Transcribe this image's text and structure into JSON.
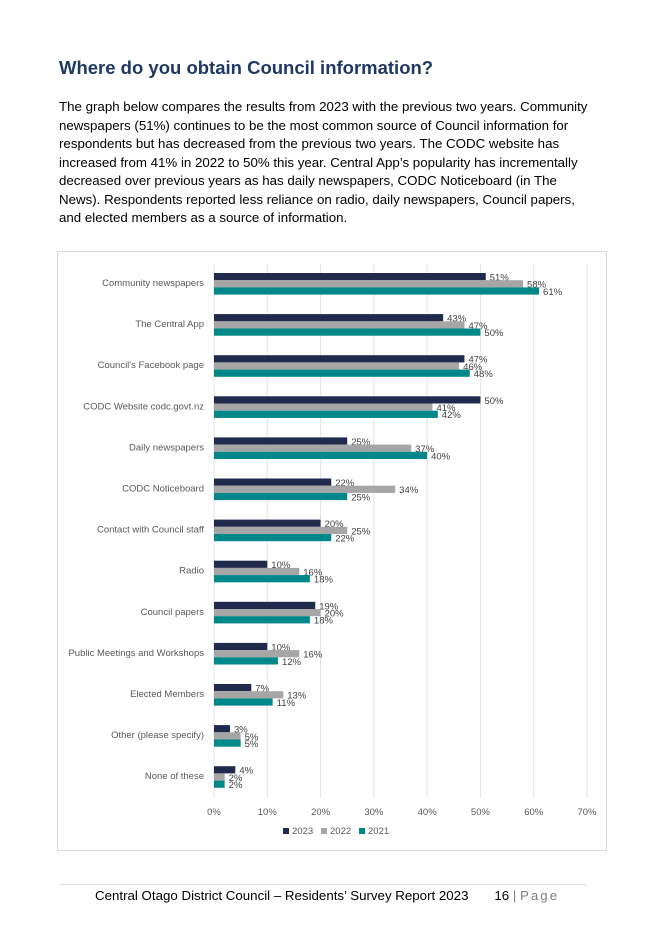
{
  "heading": "Where do you obtain Council information?",
  "body": "The graph below compares the results from 2023 with the previous two years. Community newspapers (51%) continues to be the most common source of Council information for respondents but has decreased from the previous two years.  The CODC website has increased from 41% in 2022 to 50% this year.  Central App’s popularity has incrementally decreased over previous years as has daily newspapers, CODC Noticeboard (in The News). Respondents reported less reliance on radio, daily newspapers, Council papers, and elected members as a source of information.",
  "footer": {
    "report": "Central Otago District Council – Residents’ Survey Report 2023",
    "page_number": "16",
    "separator": "|",
    "page_word": "Page"
  },
  "chart_data": {
    "type": "bar",
    "orientation": "horizontal",
    "categories": [
      "Community newspapers",
      "The Central App",
      "Council's Facebook page",
      "CODC Website codc.govt.nz",
      "Daily newspapers",
      "CODC Noticeboard",
      "Contact with Council staff",
      "Radio",
      "Council papers",
      "Public Meetings and Workshops",
      "Elected Members",
      "Other (please specify)",
      "None of these"
    ],
    "series": [
      {
        "name": "2023",
        "color": "#1f2a4d",
        "values": [
          51,
          43,
          47,
          50,
          25,
          22,
          20,
          10,
          19,
          10,
          7,
          3,
          4
        ]
      },
      {
        "name": "2022",
        "color": "#a6a6a6",
        "values": [
          58,
          47,
          46,
          41,
          37,
          34,
          25,
          16,
          20,
          16,
          13,
          5,
          2
        ]
      },
      {
        "name": "2021",
        "color": "#00878a",
        "values": [
          61,
          50,
          48,
          42,
          40,
          25,
          22,
          18,
          18,
          12,
          11,
          5,
          2
        ]
      }
    ],
    "xlim": [
      0,
      70
    ],
    "xticks": [
      "0%",
      "10%",
      "20%",
      "30%",
      "40%",
      "50%",
      "60%",
      "70%"
    ],
    "value_suffix": "%",
    "grid": true,
    "legend_position": "bottom"
  }
}
